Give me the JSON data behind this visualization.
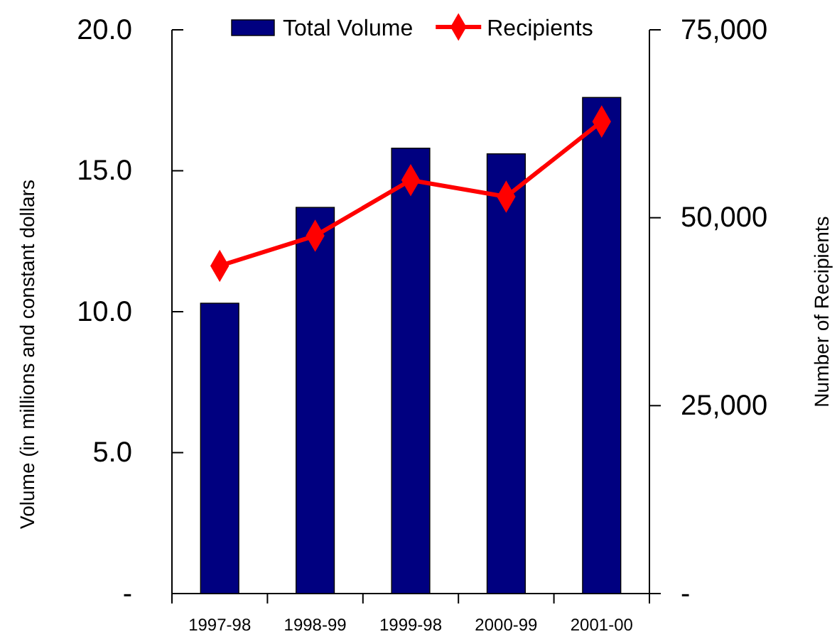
{
  "chart_data": {
    "type": "bar",
    "categories": [
      "1997-98",
      "1998-99",
      "1999-98",
      "2000-99",
      "2001-00"
    ],
    "ylabel": "Volume (in millions and constant dollars",
    "y2label": "Number of Recipients",
    "ylim": [
      0,
      20
    ],
    "yticks": [
      {
        "value": 0,
        "label": "-"
      },
      {
        "value": 5,
        "label": "5.0"
      },
      {
        "value": 10,
        "label": "10.0"
      },
      {
        "value": 15,
        "label": "15.0"
      },
      {
        "value": 20,
        "label": "20.0"
      }
    ],
    "y2lim": [
      0,
      75000
    ],
    "y2ticks": [
      {
        "value": 0,
        "label": "-"
      },
      {
        "value": 25000,
        "label": "25,000"
      },
      {
        "value": 50000,
        "label": "50,000"
      },
      {
        "value": 75000,
        "label": "75,000"
      }
    ],
    "legend": "top",
    "grid": false,
    "series": [
      {
        "name": "Total Volume",
        "color": "#000080",
        "values": [
          10.3,
          13.7,
          15.8,
          15.6,
          17.6
        ]
      },
      {
        "name": "Recipients",
        "type": "line",
        "axis": "y2",
        "color": "#ff0000",
        "marker": "diamond",
        "values": [
          43600,
          47600,
          55000,
          52800,
          62800
        ]
      }
    ]
  }
}
